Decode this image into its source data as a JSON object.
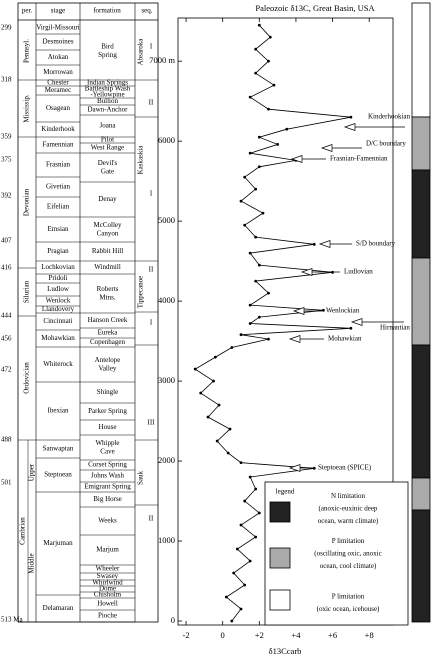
{
  "chart_data": {
    "type": "line",
    "title": "Paleozoic δ13C, Great Basin, USA",
    "x_label": "δ13Ccarb",
    "xlim": [
      -2.44,
      9.3
    ],
    "xticks": [
      -2,
      0,
      {
        "value": 2,
        "label": "+2"
      },
      {
        "value": 4,
        "label": "+4"
      },
      {
        "value": 6,
        "label": "+6"
      },
      {
        "value": 8,
        "label": "+8"
      }
    ],
    "ylim": [
      -50,
      7540
    ],
    "yticks": [
      0,
      1000,
      2000,
      3000,
      4000,
      5000,
      6000,
      {
        "value": 7000,
        "label": "7000 m"
      }
    ],
    "x": [
      0.5,
      1.0,
      0.2,
      1.2,
      0.6,
      1.5,
      0.8,
      1.8,
      1.0,
      2.0,
      1.2,
      1.8,
      1.5,
      5.0,
      1.0,
      0.3,
      -0.3,
      0.4,
      -0.8,
      -0.2,
      -1.2,
      -0.5,
      -1.5,
      -0.4,
      0.5,
      2.5,
      1.0,
      7.0,
      1.5,
      2.0,
      5.5,
      1.5,
      2.5,
      1.8,
      6.0,
      2.0,
      1.5,
      5.0,
      1.8,
      1.2,
      2.2,
      1.0,
      1.8,
      1.2,
      2.0,
      4.0,
      1.5,
      3.0,
      2.0,
      3.5,
      7.0,
      2.5,
      1.5,
      2.8,
      1.8,
      2.5,
      1.8,
      2.6,
      2.0
    ],
    "series": [
      {
        "color": "#000000",
        "values": [
          0,
          150,
          300,
          450,
          600,
          750,
          900,
          1050,
          1200,
          1350,
          1500,
          1650,
          1800,
          1910,
          1980,
          2100,
          2250,
          2400,
          2550,
          2700,
          2850,
          3000,
          3150,
          3300,
          3420,
          3525,
          3580,
          3660,
          3720,
          3800,
          3885,
          3950,
          4100,
          4250,
          4360,
          4450,
          4600,
          4710,
          4800,
          4950,
          5100,
          5250,
          5400,
          5550,
          5680,
          5760,
          5850,
          5960,
          6050,
          6150,
          6300,
          6400,
          6550,
          6700,
          6850,
          7000,
          7150,
          7300,
          7450
        ]
      }
    ],
    "annotations": [
      "Kinderhookian",
      "D/C boundary",
      "Frasnian-Famennian",
      "S/D boundary",
      "Ludlovian",
      "Wenlockian",
      "Hirnantian",
      "Mohawkian",
      "Steptoean (SPICE)"
    ],
    "legend": {
      "title": "legend",
      "items": [
        {
          "color": "#222222",
          "lines": [
            "N limitation",
            "(anoxic-euxinic deep",
            "ocean, warm climate)"
          ]
        },
        {
          "color": "#aaaaaa",
          "lines": [
            "P limitation",
            "(oscillating oxic, anoxic",
            "ocean, cool climate)"
          ]
        },
        {
          "color": "#ffffff",
          "lines": [
            "P limitation",
            "(oxic ocean, icehouse)"
          ]
        }
      ]
    }
  },
  "strat": {
    "headers": [
      "per.",
      "stage",
      "formation",
      "seq."
    ],
    "ages": [
      "299",
      "318",
      "359",
      "375",
      "392",
      "407",
      "416",
      "444",
      "456",
      "472",
      "488",
      "501",
      "513 Ma"
    ],
    "periods": [
      "Pennsyl.",
      "Mississip.",
      "Devonian",
      "Silurian",
      "Ordovician",
      "Cambrian",
      "Upper",
      "Middle"
    ],
    "stages": [
      "Virgil-Missouri",
      "Desmoines",
      "Atokan",
      "Morrowan",
      "Chester",
      "Meramec",
      "Osagean",
      "Kinderhook",
      "Famennian",
      "Frasnian",
      "Givetian",
      "Eifelian",
      "Emsian",
      "Pragian",
      "Lochkovian",
      "Pridoli",
      "Ludlow",
      "Wenlock",
      "Llandovery",
      "Cincinnati",
      "Mohawkian",
      "Whiterock",
      "Ibexian",
      "Sanwaptan",
      "Steptoean",
      "Marjuman",
      "Delamaran"
    ],
    "formations": [
      [
        "Bird",
        "Spring"
      ],
      [
        "Indian Springs"
      ],
      [
        "Battleship Wash",
        "-Yellowpine"
      ],
      [
        "Bullion"
      ],
      [
        "Dawn-Anchor"
      ],
      [
        "Joana"
      ],
      [
        "Pilot"
      ],
      [
        "West Range"
      ],
      [
        "Devil's",
        "Gate"
      ],
      [
        "Denay"
      ],
      [
        "McColley",
        "Canyon"
      ],
      [
        "Rabbit Hill"
      ],
      [
        "Windmill"
      ],
      [
        "Roberts",
        "Mtns."
      ],
      [
        "Hanson Creek"
      ],
      [
        "Eureka"
      ],
      [
        "Copenhagen"
      ],
      [
        "Antelope",
        "Valley"
      ],
      [
        "Shingle"
      ],
      [
        "Parker Spring"
      ],
      [
        "House"
      ],
      [
        "Whipple",
        "Cave"
      ],
      [
        "Corset Spring"
      ],
      [
        "Johns Wash"
      ],
      [
        "Emigrant Spring"
      ],
      [
        "Big Horse"
      ],
      [
        "Weeks"
      ],
      [
        "Marjum"
      ],
      [
        "Wheeler"
      ],
      [
        "Swasey"
      ],
      [
        "Whirlwind"
      ],
      [
        "Dome"
      ],
      [
        "Chisholm"
      ],
      [
        "Howell"
      ],
      [
        "Pioche"
      ]
    ],
    "sequences": [
      "Absaroka",
      "I",
      "II",
      "Kaskaskia",
      "I",
      "Tippecanoe",
      "II",
      "I",
      "III",
      "Sauk",
      "II"
    ]
  }
}
